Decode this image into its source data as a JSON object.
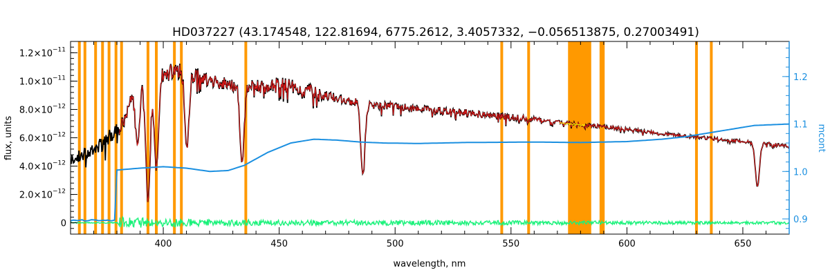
{
  "chart_data": {
    "type": "line",
    "title": "HD037227   (43.174548, 122.81694, 6775.2612, 3.4057332, −0.056513875, 0.27003491)",
    "xlabel": "wavelength, nm",
    "ylabel": "flux, units",
    "y2label": "mcont",
    "xlim": [
      360,
      670
    ],
    "ylim": [
      -8e-13,
      1.28e-11
    ],
    "y2lim": [
      0.868,
      1.274
    ],
    "x_ticks": [
      {
        "value": 400,
        "label": "400"
      },
      {
        "value": 450,
        "label": "450"
      },
      {
        "value": 500,
        "label": "500"
      },
      {
        "value": 550,
        "label": "550"
      },
      {
        "value": 600,
        "label": "600"
      },
      {
        "value": 650,
        "label": "650"
      }
    ],
    "y_ticks": [
      {
        "value": 0,
        "mant": "0",
        "exp": ""
      },
      {
        "value": 2e-12,
        "mant": "2.0×10",
        "exp": "−12"
      },
      {
        "value": 4e-12,
        "mant": "4.0×10",
        "exp": "−12"
      },
      {
        "value": 6e-12,
        "mant": "6.0×10",
        "exp": "−12"
      },
      {
        "value": 8e-12,
        "mant": "8.0×10",
        "exp": "−12"
      },
      {
        "value": 1e-11,
        "mant": "1.0×10",
        "exp": "−11"
      },
      {
        "value": 1.2e-11,
        "mant": "1.2×10",
        "exp": "−11"
      }
    ],
    "y2_ticks": [
      {
        "value": 0.9,
        "label": "0.9"
      },
      {
        "value": 1.0,
        "label": "1.0"
      },
      {
        "value": 1.1,
        "label": "1.1"
      },
      {
        "value": 1.2,
        "label": "1.2"
      }
    ],
    "masked_lines_nm": [
      363.8,
      366.2,
      370.8,
      373.8,
      376.6,
      379.6,
      382.0,
      393.4,
      397.0,
      404.8,
      407.8,
      435.6,
      546.0,
      557.6,
      588.8,
      589.8,
      630.0,
      636.4
    ],
    "masked_band_nm": [
      574.6,
      584.6
    ],
    "absorption_lines": [
      {
        "x": 383.8,
        "depth": 0.12
      },
      {
        "x": 388.9,
        "depth": 0.45
      },
      {
        "x": 393.4,
        "depth": 0.85
      },
      {
        "x": 397.0,
        "depth": 0.62
      },
      {
        "x": 410.2,
        "depth": 0.5
      },
      {
        "x": 434.0,
        "depth": 0.55
      },
      {
        "x": 486.1,
        "depth": 0.6
      },
      {
        "x": 656.3,
        "depth": 0.55
      }
    ],
    "series": [
      {
        "key": "observed",
        "color": "#000000",
        "x": [
          360,
          365,
          370,
          375,
          378,
          381,
          384,
          390,
          395,
          400,
          405,
          410,
          415,
          420,
          430,
          440,
          450,
          460,
          470,
          480,
          490,
          500,
          520,
          540,
          560,
          580,
          600,
          620,
          640,
          660,
          670
        ],
        "y": [
          4.4e-12,
          4.8e-12,
          5.2e-12,
          5.7e-12,
          6.3e-12,
          6.5e-12,
          8.5e-12,
          9.8e-12,
          1.01e-11,
          1.04e-11,
          1.08e-11,
          1.06e-11,
          1.03e-11,
          1e-11,
          9.7e-12,
          9.6e-12,
          9.8e-12,
          9.5e-12,
          9e-12,
          8.6e-12,
          8.3e-12,
          8.2e-12,
          7.9e-12,
          7.6e-12,
          7.3e-12,
          6.95e-12,
          6.6e-12,
          6.2e-12,
          5.9e-12,
          5.6e-12,
          5.4e-12
        ]
      },
      {
        "key": "model",
        "color": "#e31b1b",
        "x": [
          381,
          384,
          390,
          395,
          400,
          405,
          410,
          415,
          420,
          430,
          440,
          450,
          460,
          470,
          480,
          490,
          500,
          520,
          540,
          560,
          580,
          600,
          620,
          640,
          660,
          670
        ],
        "y": [
          8e-12,
          8.5e-12,
          9.8e-12,
          1.01e-11,
          1.04e-11,
          1.08e-11,
          1.06e-11,
          1.03e-11,
          1e-11,
          9.7e-12,
          9.6e-12,
          9.8e-12,
          9.5e-12,
          9e-12,
          8.6e-12,
          8.3e-12,
          8.2e-12,
          7.9e-12,
          7.6e-12,
          7.3e-12,
          6.95e-12,
          6.6e-12,
          6.2e-12,
          5.9e-12,
          5.6e-12,
          5.4e-12
        ]
      },
      {
        "key": "mcont",
        "color": "#1a8fe0",
        "axis": "right",
        "x": [
          360,
          380,
          390,
          400,
          410,
          420,
          428,
          435,
          445,
          455,
          465,
          475,
          485,
          495,
          510,
          530,
          560,
          580,
          600,
          615,
          625,
          640,
          655,
          670
        ],
        "y": [
          0.897,
          1.003,
          1.007,
          1.01,
          1.007,
          1.0,
          1.002,
          1.013,
          1.04,
          1.06,
          1.068,
          1.066,
          1.062,
          1.06,
          1.059,
          1.061,
          1.062,
          1.061,
          1.063,
          1.068,
          1.073,
          1.085,
          1.097,
          1.1
        ]
      },
      {
        "key": "residuals",
        "color": "#19f27a",
        "x": [
          360,
          380,
          381,
          390,
          400,
          420,
          450,
          500,
          560,
          600,
          650,
          670
        ],
        "y": [
          0,
          0,
          4.5e-13,
          3.5e-13,
          3e-13,
          2.5e-13,
          2e-13,
          1.8e-13,
          1.5e-13,
          1.3e-13,
          1e-13,
          1e-13
        ]
      },
      {
        "key": "masked-segment",
        "color": "#ffff00",
        "x": [
          571,
          582
        ],
        "y": [
          7.05e-12,
          6.85e-12
        ]
      }
    ]
  }
}
